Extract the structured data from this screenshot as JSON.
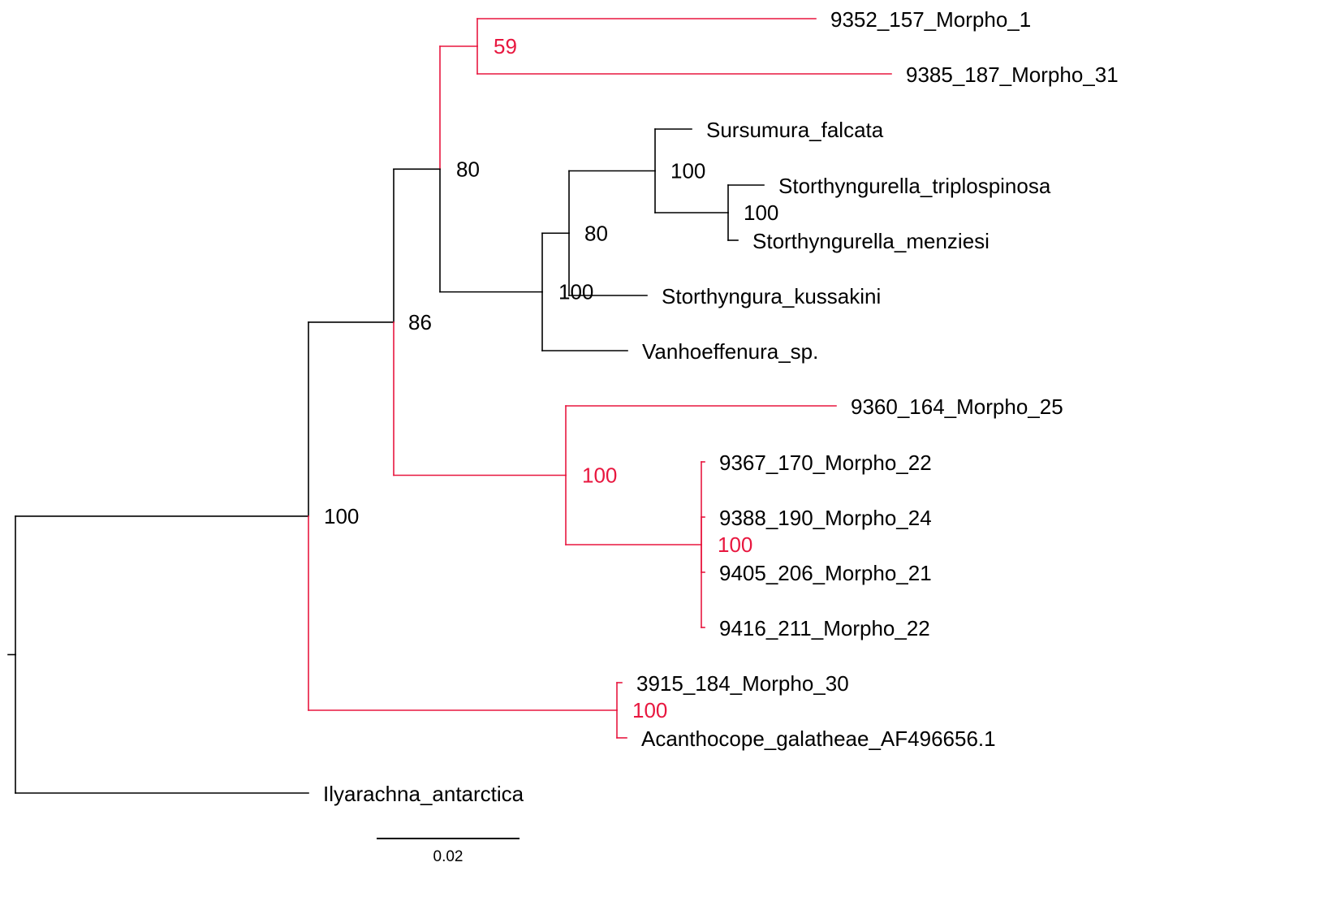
{
  "colors": {
    "default": "#000000",
    "highlight": "#e8173f"
  },
  "scale_bar": {
    "length": 0.02,
    "label": "0.02"
  },
  "tree": {
    "id": "root",
    "line": "black",
    "children": [
      {
        "id": "n_ingroup",
        "support": "100",
        "line": "black",
        "children": [
          {
            "id": "n_86",
            "support": "86",
            "line": "black",
            "children": [
              {
                "id": "n_80a",
                "support": "80",
                "line": "black",
                "children": [
                  {
                    "id": "n_59",
                    "support": "59",
                    "line": "red",
                    "children": [
                      {
                        "id": "t_9352",
                        "name": "9352_157_Morpho_1",
                        "line": "red"
                      },
                      {
                        "id": "t_9385",
                        "name": "9385_187_Morpho_31",
                        "line": "red"
                      }
                    ]
                  },
                  {
                    "id": "n_100k",
                    "support": "100",
                    "line": "black",
                    "children": [
                      {
                        "id": "n_80b",
                        "support": "80",
                        "line": "black",
                        "children": [
                          {
                            "id": "n_100s",
                            "support": "100",
                            "line": "black",
                            "children": [
                              {
                                "id": "t_sursumura",
                                "name": "Sursumura_falcata",
                                "line": "black"
                              },
                              {
                                "id": "n_100st",
                                "support": "100",
                                "line": "black",
                                "children": [
                                  {
                                    "id": "t_triplo",
                                    "name": "Storthyngurella_triplospinosa",
                                    "line": "black"
                                  },
                                  {
                                    "id": "t_menz",
                                    "name": "Storthyngurella_menziesi",
                                    "line": "black"
                                  }
                                ]
                              }
                            ]
                          },
                          {
                            "id": "t_kussakini",
                            "name": "Storthyngura_kussakini",
                            "line": "black"
                          }
                        ]
                      },
                      {
                        "id": "t_vanhoe",
                        "name": "Vanhoeffenura_sp.",
                        "line": "black"
                      }
                    ]
                  }
                ]
              },
              {
                "id": "n_100m",
                "support": "100",
                "line": "red",
                "children": [
                  {
                    "id": "t_9360",
                    "name": "9360_164_Morpho_25",
                    "line": "red"
                  },
                  {
                    "id": "n_100p",
                    "support": "100",
                    "line": "red",
                    "children": [
                      {
                        "id": "t_9367",
                        "name": "9367_170_Morpho_22",
                        "line": "red"
                      },
                      {
                        "id": "t_9388",
                        "name": "9388_190_Morpho_24",
                        "line": "red"
                      },
                      {
                        "id": "t_9405",
                        "name": "9405_206_Morpho_21",
                        "line": "red"
                      },
                      {
                        "id": "t_9416",
                        "name": "9416_211_Morpho_22",
                        "line": "red"
                      }
                    ]
                  }
                ]
              }
            ]
          },
          {
            "id": "n_100a",
            "support": "100",
            "line": "red",
            "children": [
              {
                "id": "t_3915",
                "name": "3915_184_Morpho_30",
                "line": "red"
              },
              {
                "id": "t_acantho",
                "name": "Acanthocope_galatheae_AF496656.1",
                "line": "red"
              }
            ]
          }
        ]
      },
      {
        "id": "t_ilyar",
        "name": "Ilyarachna_antarctica",
        "line": "black"
      }
    ]
  }
}
